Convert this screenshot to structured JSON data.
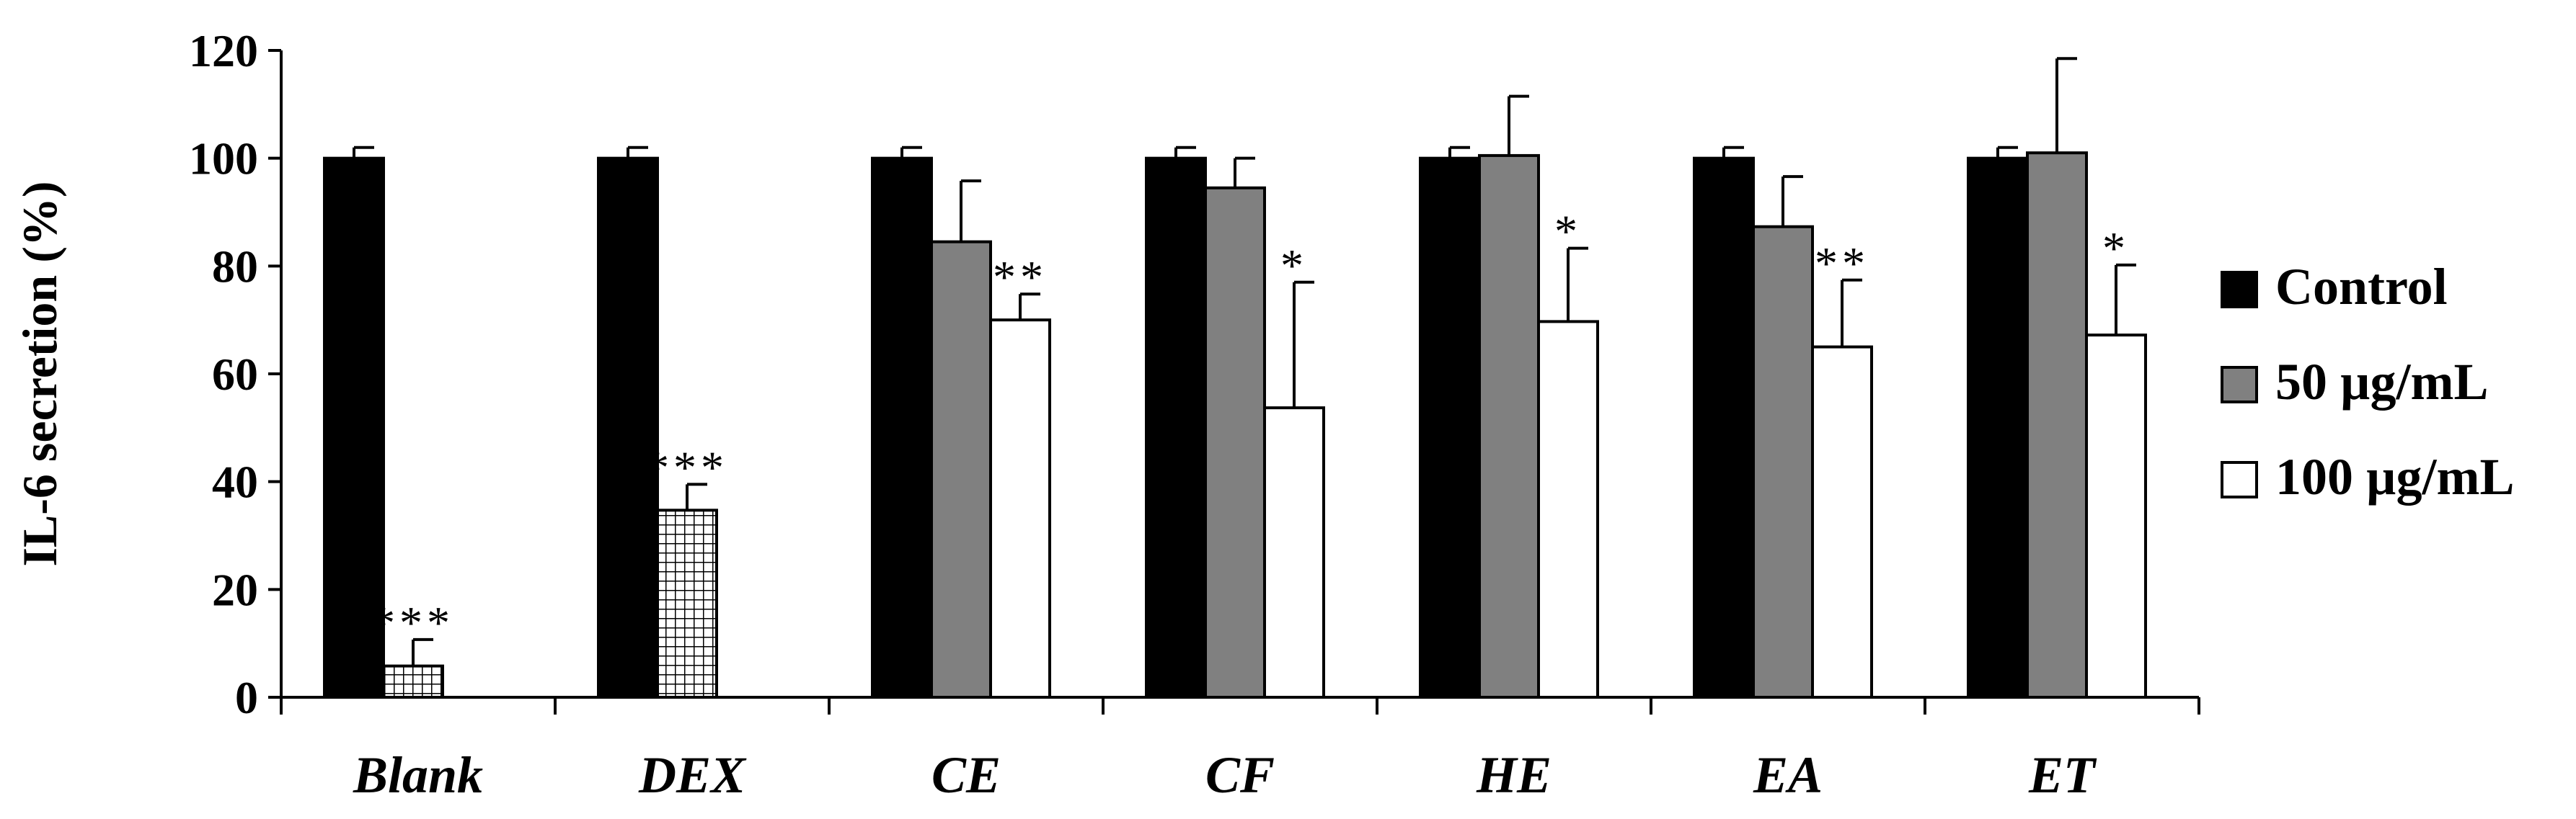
{
  "chart_data": {
    "type": "bar",
    "title": "",
    "xlabel": "",
    "ylabel": "IL-6 secretion (%)",
    "ylim": [
      0,
      120
    ],
    "yticks": [
      0,
      20,
      40,
      60,
      80,
      100,
      120
    ],
    "categories": [
      "Blank",
      "DEX",
      "CE",
      "CF",
      "HE",
      "EA",
      "ET"
    ],
    "series": [
      {
        "name": "Control",
        "color": "#000000",
        "values": [
          100,
          100,
          100,
          100,
          100,
          100,
          100
        ],
        "errors": [
          2,
          2,
          2,
          2,
          2,
          2,
          2
        ]
      },
      {
        "name": "50 µg/mL",
        "color": "#808080",
        "values": [
          null,
          null,
          84.5,
          94.5,
          100.5,
          87.3,
          101
        ],
        "errors": [
          null,
          null,
          11.3,
          5.5,
          11,
          9.3,
          17.5
        ]
      },
      {
        "name": "100 µg/mL",
        "color": "#ffffff",
        "values": [
          null,
          null,
          70,
          53.7,
          69.7,
          65,
          67.2
        ],
        "errors": [
          null,
          null,
          4.8,
          23.3,
          13.6,
          12.4,
          13
        ],
        "significance": [
          null,
          null,
          "**",
          "*",
          "*",
          "**",
          "*"
        ]
      }
    ],
    "treatment_bars": [
      {
        "category": "Blank",
        "value": 5.8,
        "error": 4.9,
        "significance": "***",
        "pattern": "grid"
      },
      {
        "category": "DEX",
        "value": 34.7,
        "error": 4.8,
        "significance": "***",
        "pattern": "grid"
      }
    ],
    "legend": [
      "Control",
      "50 µg/mL",
      "100 µg/mL"
    ],
    "legend_position": "right",
    "grid": false
  }
}
